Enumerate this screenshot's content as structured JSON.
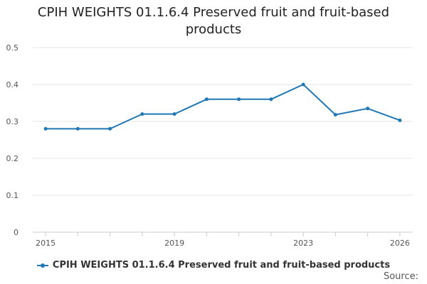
{
  "chart_data": {
    "type": "line",
    "title": "CPIH WEIGHTS 01.1.6.4 Preserved fruit and fruit-based products",
    "x": [
      2015,
      2016,
      2017,
      2018,
      2019,
      2020,
      2021,
      2022,
      2023,
      2024,
      2025,
      2026
    ],
    "series": [
      {
        "name": "CPIH WEIGHTS 01.1.6.4 Preserved fruit and fruit-based products",
        "color": "#1f77b4",
        "values": [
          0.28,
          0.28,
          0.28,
          0.32,
          0.32,
          0.36,
          0.36,
          0.36,
          0.4,
          0.318,
          0.335,
          0.303
        ]
      }
    ],
    "x_tick_labels": [
      "2015",
      "2019",
      "2023",
      "2026"
    ],
    "y_ticks": [
      0,
      0.1,
      0.2,
      0.3,
      0.4,
      0.5
    ],
    "ylim": [
      0,
      0.5
    ],
    "xlim": [
      2014.6,
      2026.4
    ],
    "grid": true,
    "legend": "bottom"
  },
  "footer": {
    "source_label": "Source:"
  }
}
